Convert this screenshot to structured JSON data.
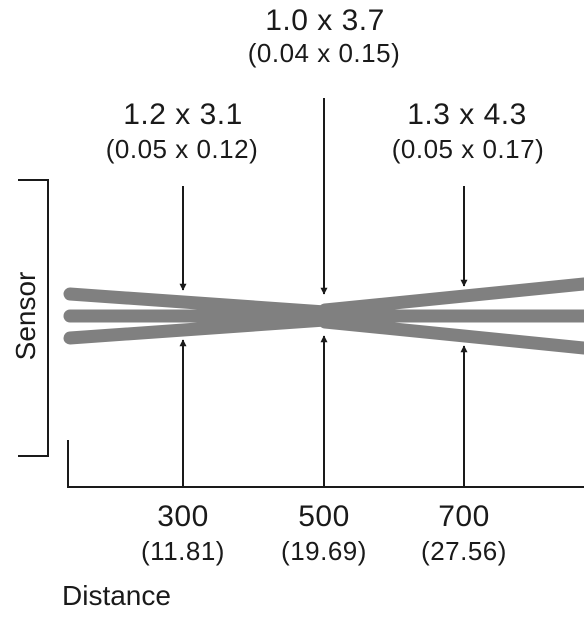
{
  "spot_labels": {
    "top": {
      "size_mm": "1.0 x 3.7",
      "size_in": "(0.04 x 0.15)"
    },
    "left": {
      "size_mm": "1.2 x 3.1",
      "size_in": "(0.05 x 0.12)"
    },
    "right": {
      "size_mm": "1.3 x 4.3",
      "size_in": "(0.05 x 0.17)"
    }
  },
  "sensor_label": "Sensor",
  "distance_label": "Distance",
  "distance_ticks": [
    {
      "mm": "300",
      "in": "(11.81)"
    },
    {
      "mm": "500",
      "in": "(19.69)"
    },
    {
      "mm": "700",
      "in": "(27.56)"
    }
  ],
  "colors": {
    "beam": "#808080",
    "line": "#1a1a1a",
    "text": "#1a1a1a"
  }
}
